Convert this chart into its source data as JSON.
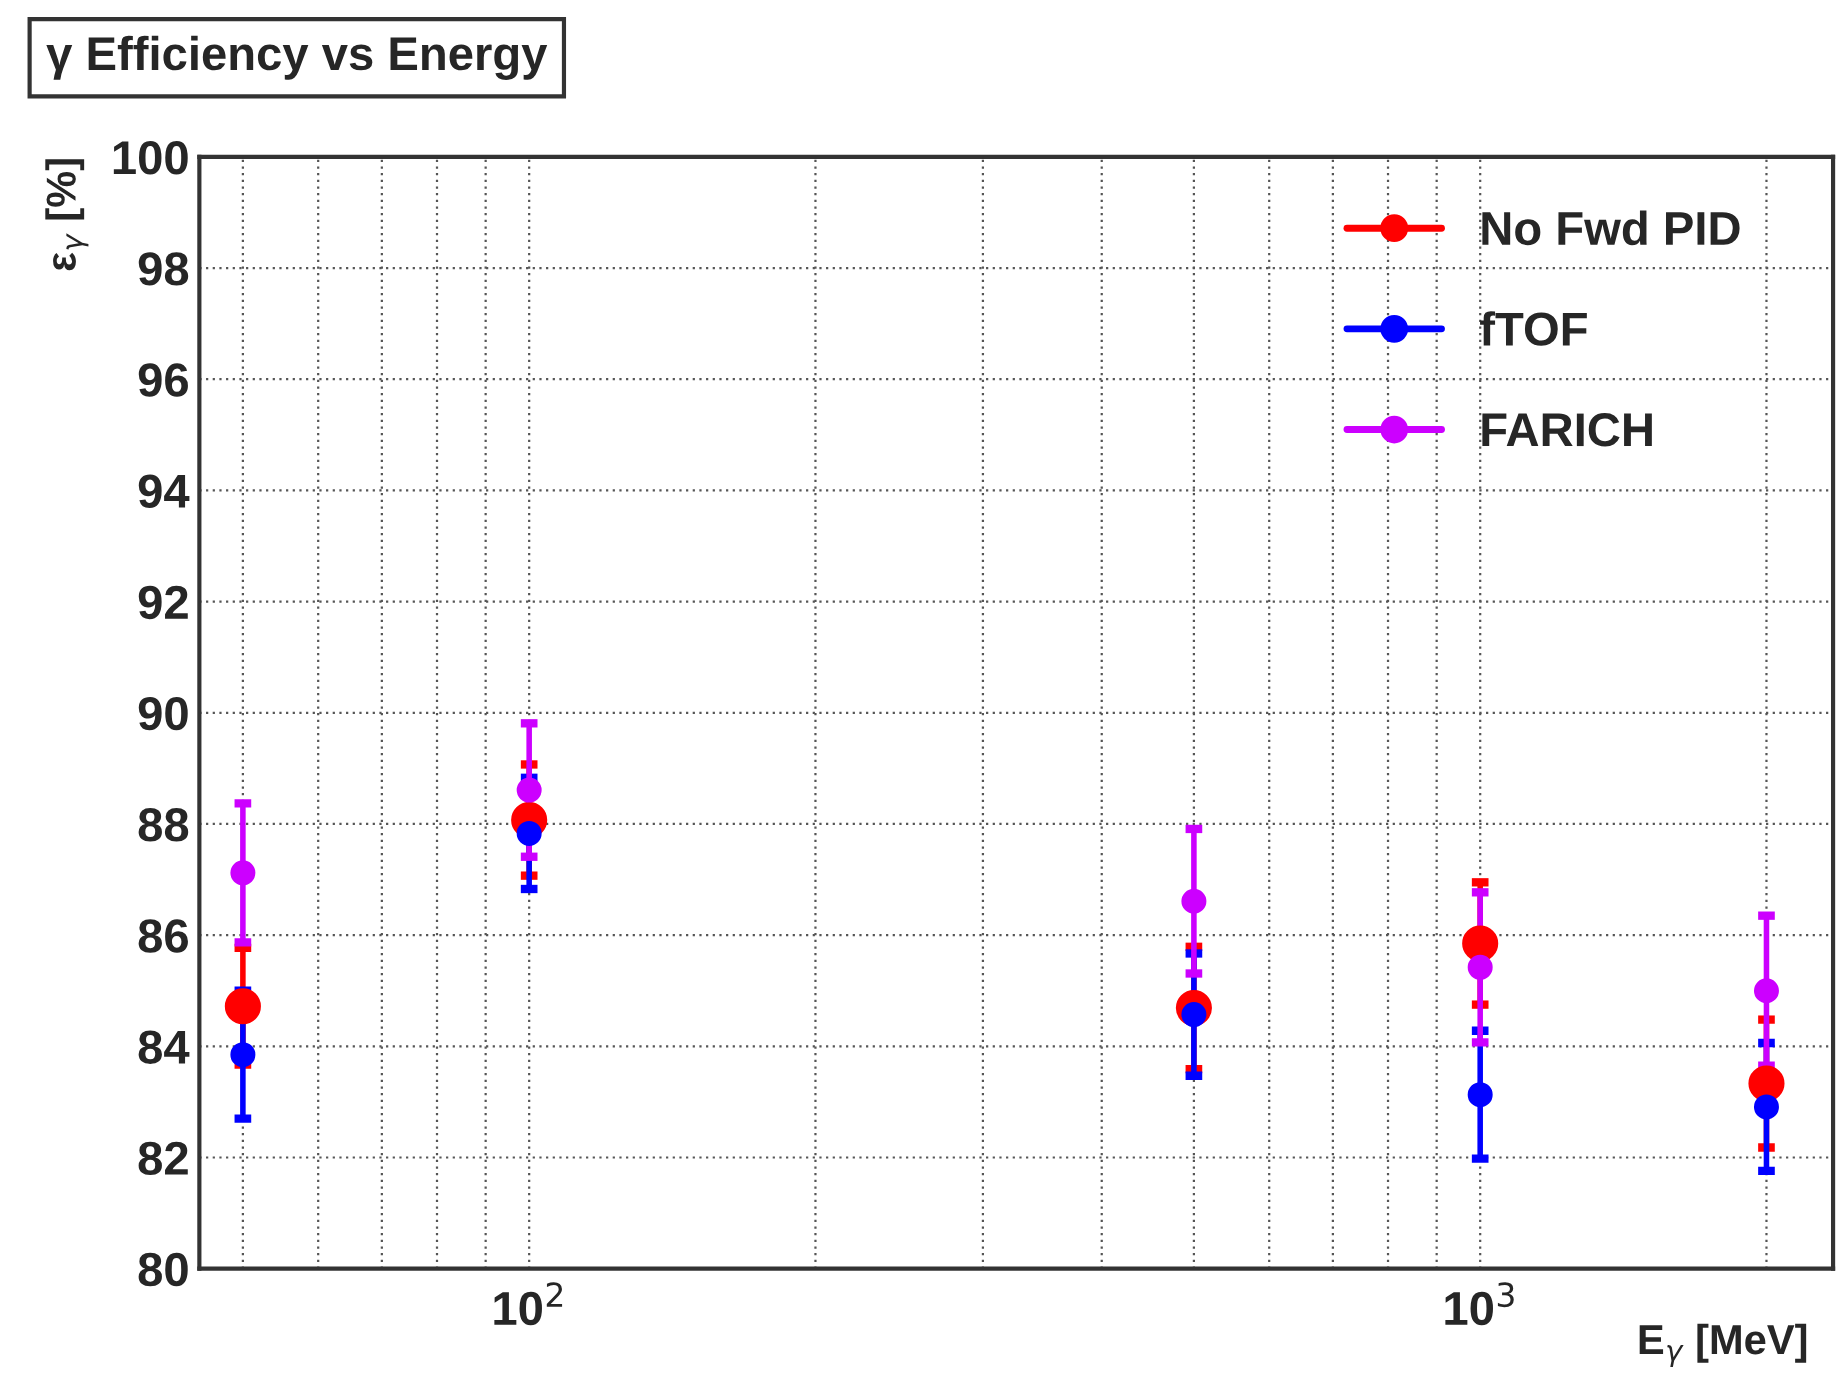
{
  "chart_data": {
    "type": "scatter",
    "title": "γ Efficiency vs Energy",
    "xlabel": "E$_{γ}$ [MeV]",
    "ylabel": "ε$_{γ}$ [%]",
    "x": [
      50,
      100,
      500,
      1000,
      2000
    ],
    "series": [
      {
        "name": "No Fwd PID",
        "color": "#ff0000",
        "values": [
          84.72,
          88.07,
          84.69,
          85.85,
          83.33
        ],
        "errors": [
          1.05,
          1.0,
          1.1,
          1.1,
          1.15
        ]
      },
      {
        "name": "fTOF",
        "color": "#0000ff",
        "values": [
          83.85,
          87.83,
          84.57,
          83.13,
          82.91
        ],
        "errors": [
          1.15,
          1.0,
          1.1,
          1.15,
          1.15
        ]
      },
      {
        "name": "FARICH",
        "color": "#cc00ff",
        "values": [
          87.12,
          88.61,
          86.61,
          85.42,
          85.0
        ],
        "errors": [
          1.25,
          1.2,
          1.3,
          1.35,
          1.35
        ]
      }
    ],
    "log": "x",
    "xlim": [
      45,
      2350
    ],
    "ylim": [
      80,
      100
    ],
    "xticks": [
      {
        "value": 50,
        "label": null
      },
      {
        "value": 60,
        "label": null
      },
      {
        "value": 70,
        "label": null
      },
      {
        "value": 80,
        "label": null
      },
      {
        "value": 90,
        "label": null
      },
      {
        "value": 100,
        "label": "10$^{2}$"
      },
      {
        "value": 200,
        "label": null
      },
      {
        "value": 300,
        "label": null
      },
      {
        "value": 400,
        "label": null
      },
      {
        "value": 500,
        "label": null
      },
      {
        "value": 600,
        "label": null
      },
      {
        "value": 700,
        "label": null
      },
      {
        "value": 800,
        "label": null
      },
      {
        "value": 900,
        "label": null
      },
      {
        "value": 1000,
        "label": "10$^{3}$"
      },
      {
        "value": 2000,
        "label": null
      }
    ],
    "yticks": [
      80,
      82,
      84,
      86,
      88,
      90,
      92,
      94,
      96,
      98,
      100
    ],
    "grid": true,
    "legend": "top right",
    "marker": "circle"
  }
}
